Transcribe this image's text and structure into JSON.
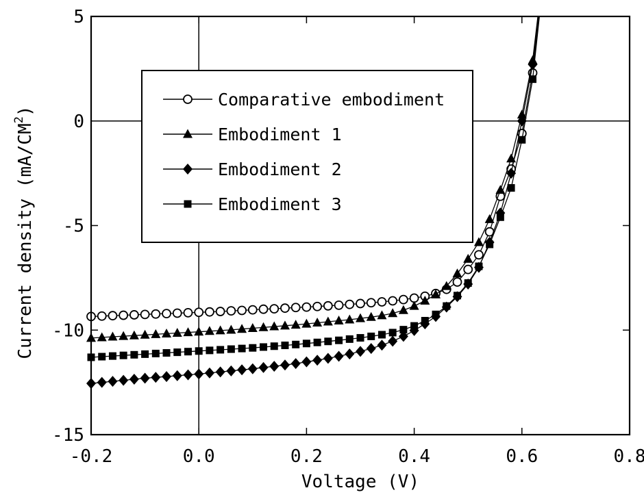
{
  "chart_data": {
    "type": "line",
    "title": "",
    "xlabel": "Voltage (V)",
    "ylabel": "Current density (mA/CM",
    "ylabel_sup": "2",
    "ylabel_close": ")",
    "xlim": [
      -0.2,
      0.8
    ],
    "ylim": [
      -15,
      5
    ],
    "xticks": [
      -0.2,
      0.0,
      0.2,
      0.4,
      0.6,
      0.8
    ],
    "xtick_labels": [
      "-0.2",
      "0.0",
      "0.2",
      "0.4",
      "0.6",
      "0.8"
    ],
    "yticks": [
      -15,
      -10,
      -5,
      0,
      5
    ],
    "ytick_labels": [
      "-15",
      "-10",
      "-5",
      "0",
      "5"
    ],
    "grid": false,
    "reference_lines": {
      "x": 0.0,
      "y": 0.0
    },
    "legend_position": "upper-left",
    "series": [
      {
        "name": "Comparative embodiment",
        "marker": "open-circle",
        "x": [
          -0.2,
          -0.18,
          -0.16,
          -0.14,
          -0.12,
          -0.1,
          -0.08,
          -0.06,
          -0.04,
          -0.02,
          0.0,
          0.02,
          0.04,
          0.06,
          0.08,
          0.1,
          0.12,
          0.14,
          0.16,
          0.18,
          0.2,
          0.22,
          0.24,
          0.26,
          0.28,
          0.3,
          0.32,
          0.34,
          0.36,
          0.38,
          0.4,
          0.42,
          0.44,
          0.46,
          0.48,
          0.5,
          0.52,
          0.54,
          0.56,
          0.58,
          0.6,
          0.62
        ],
        "y": [
          -9.35,
          -9.33,
          -9.31,
          -9.29,
          -9.27,
          -9.25,
          -9.23,
          -9.21,
          -9.19,
          -9.17,
          -9.15,
          -9.13,
          -9.11,
          -9.08,
          -9.06,
          -9.03,
          -9.0,
          -8.98,
          -8.95,
          -8.92,
          -8.9,
          -8.87,
          -8.84,
          -8.81,
          -8.77,
          -8.73,
          -8.69,
          -8.65,
          -8.6,
          -8.54,
          -8.47,
          -8.38,
          -8.25,
          -8.05,
          -7.7,
          -7.1,
          -6.4,
          -5.3,
          -3.6,
          -2.3,
          -0.6,
          2.3
        ]
      },
      {
        "name": "Embodiment 1",
        "marker": "filled-triangle",
        "x": [
          -0.2,
          -0.18,
          -0.16,
          -0.14,
          -0.12,
          -0.1,
          -0.08,
          -0.06,
          -0.04,
          -0.02,
          0.0,
          0.02,
          0.04,
          0.06,
          0.08,
          0.1,
          0.12,
          0.14,
          0.16,
          0.18,
          0.2,
          0.22,
          0.24,
          0.26,
          0.28,
          0.3,
          0.32,
          0.34,
          0.36,
          0.38,
          0.4,
          0.42,
          0.44,
          0.46,
          0.48,
          0.5,
          0.52,
          0.54,
          0.56,
          0.58,
          0.6,
          0.62
        ],
        "y": [
          -10.38,
          -10.35,
          -10.32,
          -10.29,
          -10.26,
          -10.23,
          -10.2,
          -10.17,
          -10.14,
          -10.11,
          -10.08,
          -10.05,
          -10.02,
          -9.99,
          -9.95,
          -9.91,
          -9.87,
          -9.83,
          -9.79,
          -9.75,
          -9.7,
          -9.65,
          -9.6,
          -9.55,
          -9.5,
          -9.44,
          -9.38,
          -9.3,
          -9.2,
          -9.05,
          -8.85,
          -8.6,
          -8.3,
          -7.9,
          -7.3,
          -6.6,
          -5.8,
          -4.7,
          -3.3,
          -1.8,
          0.3,
          2.9
        ]
      },
      {
        "name": "Embodiment 2",
        "marker": "filled-diamond",
        "x": [
          -0.2,
          -0.18,
          -0.16,
          -0.14,
          -0.12,
          -0.1,
          -0.08,
          -0.06,
          -0.04,
          -0.02,
          0.0,
          0.02,
          0.04,
          0.06,
          0.08,
          0.1,
          0.12,
          0.14,
          0.16,
          0.18,
          0.2,
          0.22,
          0.24,
          0.26,
          0.28,
          0.3,
          0.32,
          0.34,
          0.36,
          0.38,
          0.4,
          0.42,
          0.44,
          0.46,
          0.48,
          0.5,
          0.52,
          0.54,
          0.56,
          0.58,
          0.6,
          0.62
        ],
        "y": [
          -12.55,
          -12.5,
          -12.45,
          -12.4,
          -12.35,
          -12.3,
          -12.26,
          -12.22,
          -12.18,
          -12.14,
          -12.1,
          -12.05,
          -12.0,
          -11.95,
          -11.9,
          -11.85,
          -11.79,
          -11.73,
          -11.67,
          -11.6,
          -11.52,
          -11.44,
          -11.35,
          -11.25,
          -11.14,
          -11.02,
          -10.88,
          -10.72,
          -10.53,
          -10.3,
          -10.02,
          -9.7,
          -9.35,
          -8.9,
          -8.4,
          -7.8,
          -7.0,
          -5.8,
          -4.4,
          -2.5,
          0.0,
          2.7
        ]
      },
      {
        "name": "Embodiment 3",
        "marker": "filled-square",
        "x": [
          -0.2,
          -0.18,
          -0.16,
          -0.14,
          -0.12,
          -0.1,
          -0.08,
          -0.06,
          -0.04,
          -0.02,
          0.0,
          0.02,
          0.04,
          0.06,
          0.08,
          0.1,
          0.12,
          0.14,
          0.16,
          0.18,
          0.2,
          0.22,
          0.24,
          0.26,
          0.28,
          0.3,
          0.32,
          0.34,
          0.36,
          0.38,
          0.4,
          0.42,
          0.44,
          0.46,
          0.48,
          0.5,
          0.52,
          0.54,
          0.56,
          0.58,
          0.6,
          0.62
        ],
        "y": [
          -11.3,
          -11.27,
          -11.24,
          -11.21,
          -11.18,
          -11.15,
          -11.12,
          -11.09,
          -11.06,
          -11.03,
          -11.0,
          -10.97,
          -10.94,
          -10.91,
          -10.88,
          -10.85,
          -10.81,
          -10.77,
          -10.73,
          -10.69,
          -10.64,
          -10.59,
          -10.54,
          -10.49,
          -10.43,
          -10.37,
          -10.3,
          -10.22,
          -10.12,
          -9.98,
          -9.8,
          -9.55,
          -9.25,
          -8.85,
          -8.35,
          -7.75,
          -6.95,
          -5.9,
          -4.6,
          -3.2,
          -0.9,
          2.0
        ]
      }
    ]
  },
  "colors": {
    "ink": "#000000",
    "background": "#ffffff"
  }
}
